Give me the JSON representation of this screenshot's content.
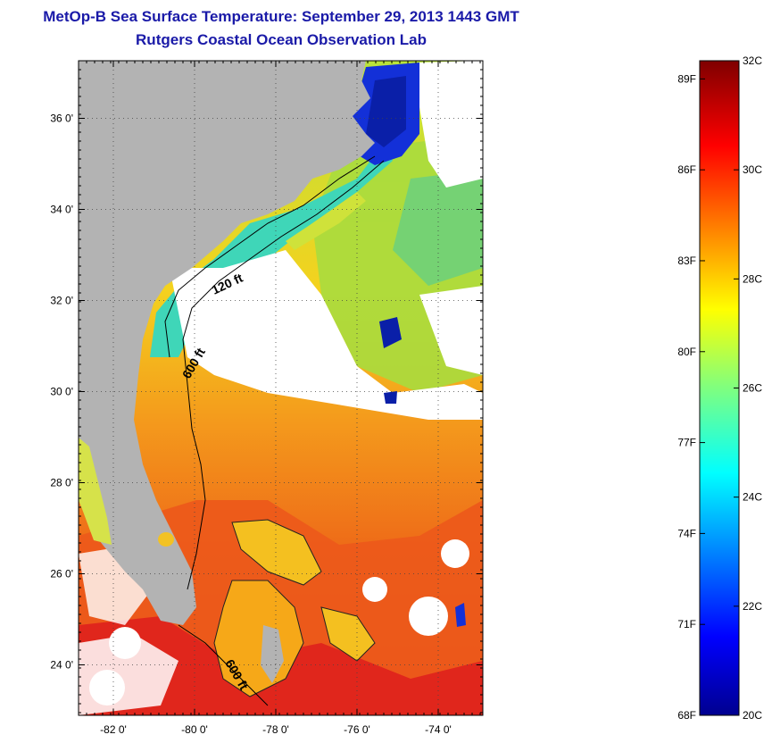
{
  "title": {
    "line1": "MetOp-B Sea Surface Temperature:  September 29, 2013 1443 GMT",
    "line2": "Rutgers Coastal Ocean Observation Lab"
  },
  "map": {
    "lat_ticks": [
      {
        "value": 36,
        "label": "36 0'"
      },
      {
        "value": 34,
        "label": "34 0'"
      },
      {
        "value": 32,
        "label": "32 0'"
      },
      {
        "value": 30,
        "label": "30 0'"
      },
      {
        "value": 28,
        "label": "28 0'"
      },
      {
        "value": 26,
        "label": "26 0'"
      },
      {
        "value": 24,
        "label": "24 0'"
      }
    ],
    "lon_ticks": [
      {
        "value": -82,
        "label": "-82 0'"
      },
      {
        "value": -80,
        "label": "-80 0'"
      },
      {
        "value": -78,
        "label": "-78 0'"
      },
      {
        "value": -76,
        "label": "-76 0'"
      },
      {
        "value": -74,
        "label": "-74 0'"
      }
    ],
    "contour_labels": {
      "c120": "120 ft",
      "c600": "600 ft",
      "c600b": "600 ft"
    },
    "colors": {
      "land": "#b3b3b3",
      "cloud": "#ffffff",
      "gulf_stream": "#e8401a",
      "warm": "#f07a18",
      "shelf": "#3fd6b8"
    }
  },
  "colorbar": {
    "celsius": [
      {
        "value": 32,
        "label": "32C"
      },
      {
        "value": 30,
        "label": "30C"
      },
      {
        "value": 28,
        "label": "28C"
      },
      {
        "value": 26,
        "label": "26C"
      },
      {
        "value": 24,
        "label": "24C"
      },
      {
        "value": 22,
        "label": "22C"
      },
      {
        "value": 20,
        "label": "20C"
      }
    ],
    "fahrenheit": [
      {
        "value": 89,
        "label": "89F"
      },
      {
        "value": 86,
        "label": "86F"
      },
      {
        "value": 83,
        "label": "83F"
      },
      {
        "value": 80,
        "label": "80F"
      },
      {
        "value": 77,
        "label": "77F"
      },
      {
        "value": 74,
        "label": "74F"
      },
      {
        "value": 71,
        "label": "71F"
      },
      {
        "value": 68,
        "label": "68F"
      }
    ],
    "range_c": [
      20,
      32
    ]
  }
}
